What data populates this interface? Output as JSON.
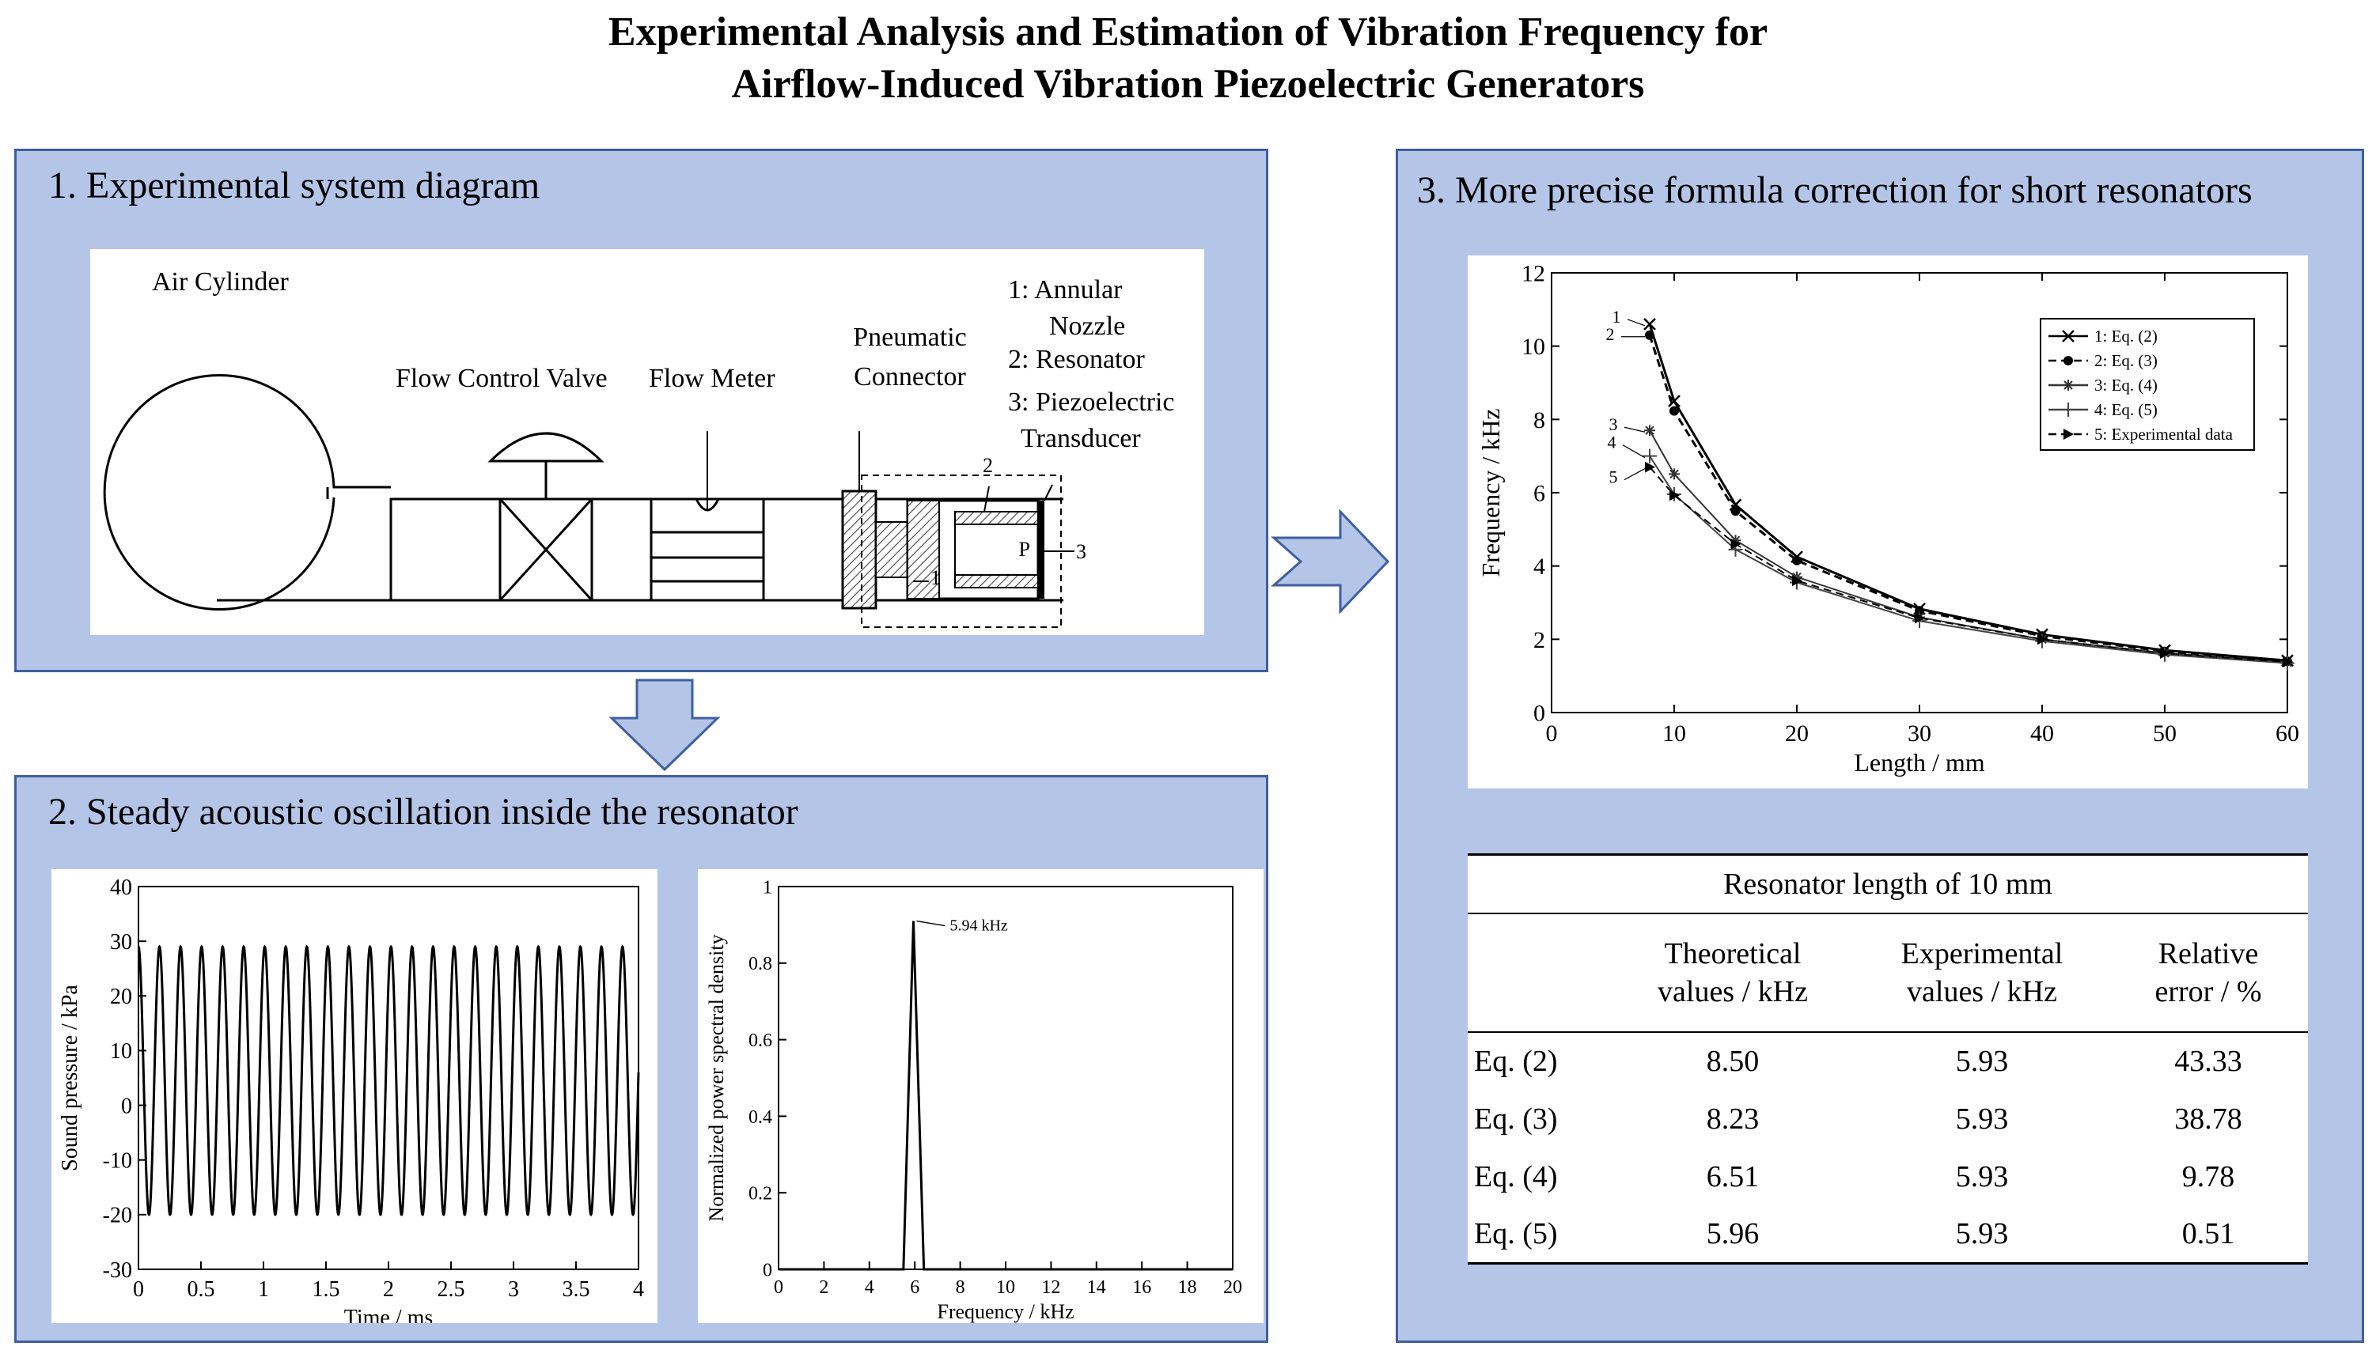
{
  "title": {
    "line1": "Experimental Analysis and Estimation of Vibration Frequency for",
    "line2": "Airflow-Induced Vibration Piezoelectric Generators"
  },
  "panel1": {
    "heading": "1. Experimental system diagram",
    "labels": {
      "air_cylinder": "Air Cylinder",
      "flow_control_valve": "Flow Control Valve",
      "flow_meter": "Flow Meter",
      "pneumatic_1": "Pneumatic",
      "pneumatic_2": "Connector",
      "legend_1a": "1: Annular",
      "legend_1b": "Nozzle",
      "legend_2": "2: Resonator",
      "legend_3a": "3: Piezoelectric",
      "legend_3b": "Transducer",
      "callout_1": "1",
      "callout_2": "2",
      "callout_3": "3",
      "callout_p": "P"
    }
  },
  "panel2": {
    "heading": "2. Steady acoustic oscillation inside the resonator"
  },
  "panel3": {
    "heading": "3. More precise formula correction for short resonators",
    "table": {
      "caption": "Resonator length of 10 mm",
      "headers": [
        [
          "",
          ""
        ],
        [
          "Theoretical",
          "values / kHz"
        ],
        [
          "Experimental",
          "values / kHz"
        ],
        [
          "Relative",
          "error / %"
        ]
      ],
      "rows": [
        [
          "Eq. (2)",
          "8.50",
          "5.93",
          "43.33"
        ],
        [
          "Eq. (3)",
          "8.23",
          "5.93",
          "38.78"
        ],
        [
          "Eq. (4)",
          "6.51",
          "5.93",
          "9.78"
        ],
        [
          "Eq. (5)",
          "5.96",
          "5.93",
          "0.51"
        ]
      ]
    }
  },
  "chart_data": [
    {
      "type": "line",
      "xlabel": "Time / ms",
      "ylabel": "Sound pressure / kPa",
      "xlim": [
        0,
        4
      ],
      "ylim": [
        -30,
        40
      ],
      "xticks": [
        "0",
        "0.5",
        "1",
        "1.5",
        "2",
        "2.5",
        "3",
        "3.5",
        "4"
      ],
      "yticks": [
        "-30",
        "-20",
        "-10",
        "0",
        "10",
        "20",
        "30",
        "40"
      ],
      "series": [
        {
          "frequency_khz": 5.94,
          "max": 29,
          "min": -20,
          "x_range": [
            0,
            4
          ]
        }
      ]
    },
    {
      "type": "line",
      "xlabel": "Frequency / kHz",
      "ylabel": "Normalized power spectral density",
      "xlim": [
        0,
        20
      ],
      "ylim": [
        0,
        1
      ],
      "xticks": [
        "0",
        "2",
        "4",
        "6",
        "8",
        "10",
        "12",
        "14",
        "16",
        "18",
        "20"
      ],
      "yticks": [
        "0",
        "0.2",
        "0.4",
        "0.6",
        "0.8",
        "1"
      ],
      "annotation": "5.94 kHz",
      "series": [
        {
          "x": [
            0,
            5.5,
            5.94,
            6.4,
            20
          ],
          "y": [
            0,
            0,
            0.91,
            0,
            0
          ]
        }
      ]
    },
    {
      "type": "line",
      "xlabel": "Length / mm",
      "ylabel": "Frequency / kHz",
      "xlim": [
        0,
        60
      ],
      "ylim": [
        0,
        12
      ],
      "xticks": [
        "0",
        "10",
        "20",
        "30",
        "40",
        "50",
        "60"
      ],
      "yticks": [
        "0",
        "2",
        "4",
        "6",
        "8",
        "10",
        "12"
      ],
      "legend_position": "top-right",
      "series": [
        {
          "name": "1: Eq. (2)",
          "label": "1",
          "x": [
            8,
            10,
            15,
            20,
            30,
            40,
            50,
            60
          ],
          "y": [
            10.6,
            8.5,
            5.67,
            4.25,
            2.83,
            2.13,
            1.7,
            1.42
          ]
        },
        {
          "name": "2: Eq. (3)",
          "label": "2",
          "x": [
            8,
            10,
            15,
            20,
            30,
            40,
            50,
            60
          ],
          "y": [
            10.3,
            8.23,
            5.5,
            4.15,
            2.78,
            2.09,
            1.67,
            1.4
          ]
        },
        {
          "name": "3: Eq. (4)",
          "label": "3",
          "x": [
            8,
            10,
            15,
            20,
            30,
            40,
            50,
            60
          ],
          "y": [
            7.7,
            6.51,
            4.7,
            3.7,
            2.6,
            2.0,
            1.62,
            1.37
          ]
        },
        {
          "name": "4: Eq. (5)",
          "label": "4",
          "x": [
            8,
            10,
            15,
            20,
            30,
            40,
            50,
            60
          ],
          "y": [
            7.0,
            5.96,
            4.45,
            3.55,
            2.5,
            1.95,
            1.58,
            1.35
          ]
        },
        {
          "name": "5: Experimental data",
          "label": "5",
          "x": [
            8,
            10,
            15,
            20,
            30,
            40,
            50,
            60
          ],
          "y": [
            6.7,
            5.93,
            4.6,
            3.6,
            2.58,
            2.0,
            1.62,
            1.38
          ]
        }
      ]
    }
  ]
}
